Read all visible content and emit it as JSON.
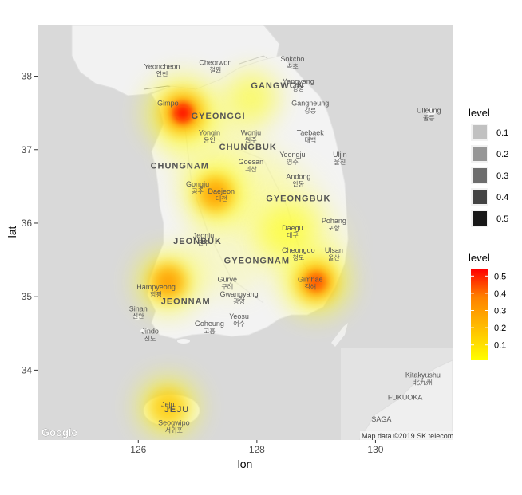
{
  "chart_data": {
    "type": "heatmap",
    "title": "",
    "xlabel": "lon",
    "ylabel": "lat",
    "xlim": [
      124.3,
      131.3
    ],
    "ylim": [
      33.05,
      38.7
    ],
    "x_ticks": [
      126,
      128,
      130
    ],
    "x_tick_labels": [
      "126",
      "128",
      "130"
    ],
    "y_ticks": [
      34,
      35,
      36,
      37,
      38
    ],
    "y_tick_labels": [
      "34",
      "35",
      "36",
      "37",
      "38"
    ],
    "grid": false,
    "legend_placement": "right",
    "density_hotspots": [
      {
        "lon": 126.75,
        "lat": 37.5,
        "level": 0.55
      },
      {
        "lon": 127.3,
        "lat": 36.4,
        "level": 0.3
      },
      {
        "lon": 126.5,
        "lat": 35.2,
        "level": 0.3
      },
      {
        "lon": 129.0,
        "lat": 35.2,
        "level": 0.4
      },
      {
        "lon": 126.5,
        "lat": 33.5,
        "level": 0.25
      },
      {
        "lon": 128.5,
        "lat": 35.9,
        "level": 0.15
      },
      {
        "lon": 127.9,
        "lat": 37.7,
        "level": 0.1
      }
    ]
  },
  "map": {
    "regions": [
      {
        "en": "GANGWON",
        "ko": ""
      },
      {
        "en": "GYEONGGI",
        "ko": ""
      },
      {
        "en": "CHUNGBUK",
        "ko": ""
      },
      {
        "en": "CHUNGNAM",
        "ko": ""
      },
      {
        "en": "JEONBUK",
        "ko": ""
      },
      {
        "en": "GYEONGBUK",
        "ko": ""
      },
      {
        "en": "GYEONGNAM",
        "ko": ""
      },
      {
        "en": "JEONNAM",
        "ko": ""
      },
      {
        "en": "JEJU",
        "ko": ""
      }
    ],
    "cities": [
      {
        "en": "Yeoncheon",
        "ko": "연천",
        "lon": 126.4,
        "lat": 38.1
      },
      {
        "en": "Cheorwon",
        "ko": "철원",
        "lon": 127.3,
        "lat": 38.15
      },
      {
        "en": "Sokcho",
        "ko": "속초",
        "lon": 128.6,
        "lat": 38.2
      },
      {
        "en": "Yangyang",
        "ko": "양양",
        "lon": 128.7,
        "lat": 37.9
      },
      {
        "en": "Gimpo",
        "ko": "",
        "lon": 126.5,
        "lat": 37.6
      },
      {
        "en": "Gangneung",
        "ko": "강릉",
        "lon": 128.9,
        "lat": 37.6
      },
      {
        "en": "Ulleung",
        "ko": "울릉",
        "lon": 130.9,
        "lat": 37.5
      },
      {
        "en": "Yongin",
        "ko": "용인",
        "lon": 127.2,
        "lat": 37.2
      },
      {
        "en": "Wonju",
        "ko": "원주",
        "lon": 127.9,
        "lat": 37.2
      },
      {
        "en": "Taebaek",
        "ko": "태백",
        "lon": 128.9,
        "lat": 37.2
      },
      {
        "en": "Yeongju",
        "ko": "영주",
        "lon": 128.6,
        "lat": 36.9
      },
      {
        "en": "Uljin",
        "ko": "울진",
        "lon": 129.4,
        "lat": 36.9
      },
      {
        "en": "Goesan",
        "ko": "괴산",
        "lon": 127.9,
        "lat": 36.8
      },
      {
        "en": "Andong",
        "ko": "안동",
        "lon": 128.7,
        "lat": 36.6
      },
      {
        "en": "Gongju",
        "ko": "공주",
        "lon": 127.0,
        "lat": 36.5
      },
      {
        "en": "Daejeon",
        "ko": "대전",
        "lon": 127.4,
        "lat": 36.4
      },
      {
        "en": "Daegu",
        "ko": "대구",
        "lon": 128.6,
        "lat": 35.9
      },
      {
        "en": "Jeonju",
        "ko": "전주",
        "lon": 127.1,
        "lat": 35.8
      },
      {
        "en": "Pohang",
        "ko": "포항",
        "lon": 129.3,
        "lat": 36.0
      },
      {
        "en": "Cheongdo",
        "ko": "청도",
        "lon": 128.7,
        "lat": 35.6
      },
      {
        "en": "Ulsan",
        "ko": "울산",
        "lon": 129.3,
        "lat": 35.6
      },
      {
        "en": "Gimhae",
        "ko": "김해",
        "lon": 128.9,
        "lat": 35.2
      },
      {
        "en": "Hampyeong",
        "ko": "함평",
        "lon": 126.3,
        "lat": 35.1
      },
      {
        "en": "Gurye",
        "ko": "구례",
        "lon": 127.5,
        "lat": 35.2
      },
      {
        "en": "Gwangyang",
        "ko": "광양",
        "lon": 127.7,
        "lat": 35.0
      },
      {
        "en": "Sinan",
        "ko": "신안",
        "lon": 126.0,
        "lat": 34.8
      },
      {
        "en": "Jindo",
        "ko": "진도",
        "lon": 126.2,
        "lat": 34.5
      },
      {
        "en": "Goheung",
        "ko": "고흥",
        "lon": 127.2,
        "lat": 34.6
      },
      {
        "en": "Yeosu",
        "ko": "여수",
        "lon": 127.7,
        "lat": 34.7
      },
      {
        "en": "Kitakyushu",
        "ko": "北九州",
        "lon": 130.8,
        "lat": 33.9
      },
      {
        "en": "FUKUOKA",
        "ko": "",
        "lon": 130.5,
        "lat": 33.6
      },
      {
        "en": "SAGA",
        "ko": "",
        "lon": 130.1,
        "lat": 33.3
      },
      {
        "en": "Jeju",
        "ko": "",
        "lon": 126.5,
        "lat": 33.5
      },
      {
        "en": "Seogwipo",
        "ko": "서귀포",
        "lon": 126.6,
        "lat": 33.25
      }
    ],
    "credit": "Map data ©2019 SK telecom",
    "logo": "Google"
  },
  "legend_fill": {
    "title": "level",
    "items": [
      "0.1",
      "0.2",
      "0.3",
      "0.4",
      "0.5"
    ],
    "alphas": [
      0.2,
      0.38,
      0.55,
      0.72,
      0.9
    ]
  },
  "legend_color": {
    "title": "level",
    "labels": [
      "0.5",
      "0.4",
      "0.3",
      "0.2",
      "0.1"
    ],
    "gradient": [
      "#ffff00",
      "#ffbf00",
      "#ff8000",
      "#ff0000"
    ]
  }
}
